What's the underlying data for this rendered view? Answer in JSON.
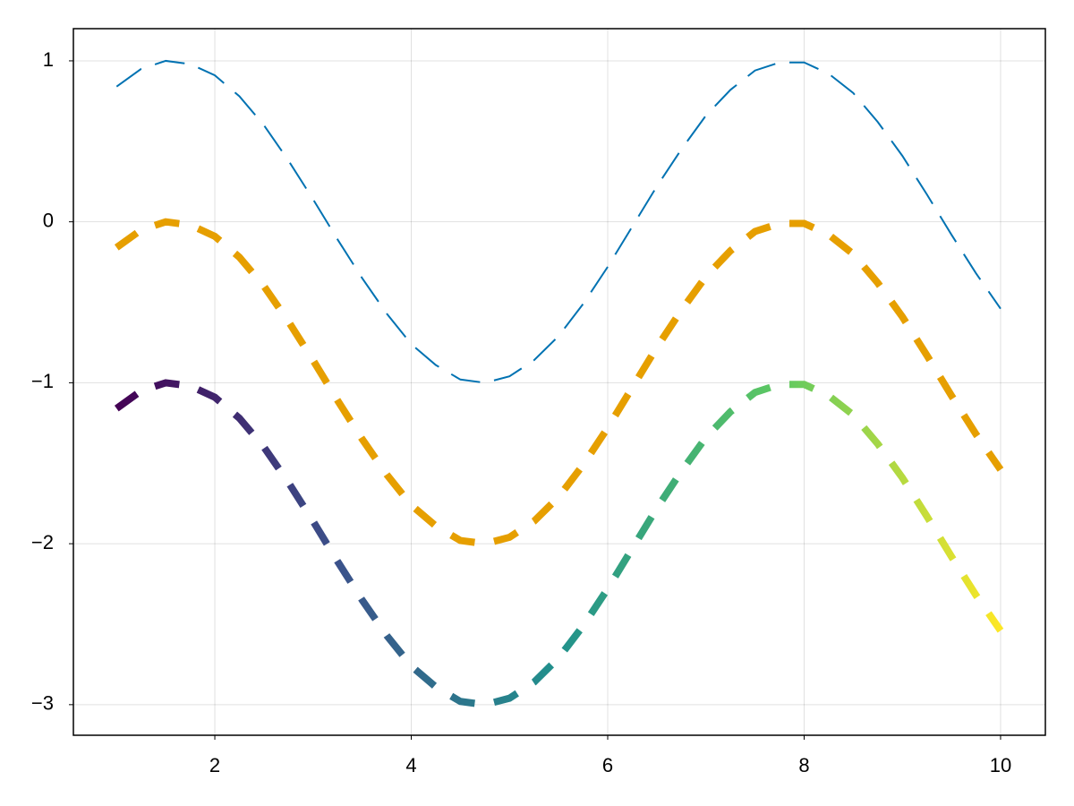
{
  "chart_data": {
    "type": "line",
    "x": [
      1,
      1.25,
      1.5,
      1.75,
      2,
      2.25,
      2.5,
      2.75,
      3,
      3.25,
      3.5,
      3.75,
      4,
      4.25,
      4.5,
      4.75,
      5,
      5.25,
      5.5,
      5.75,
      6,
      6.25,
      6.5,
      6.75,
      7,
      7.25,
      7.5,
      7.75,
      8,
      8.25,
      8.5,
      8.75,
      9,
      9.25,
      9.5,
      9.75,
      10
    ],
    "series": [
      {
        "color": "#0072b2",
        "linewidth": 2,
        "linestyle": "dash",
        "values": [
          0.84,
          0.95,
          1.0,
          0.98,
          0.91,
          0.78,
          0.6,
          0.38,
          0.14,
          -0.11,
          -0.35,
          -0.57,
          -0.76,
          -0.89,
          -0.98,
          -1.0,
          -0.96,
          -0.86,
          -0.71,
          -0.51,
          -0.28,
          -0.03,
          0.22,
          0.45,
          0.66,
          0.82,
          0.94,
          0.99,
          0.99,
          0.92,
          0.8,
          0.62,
          0.41,
          0.17,
          -0.08,
          -0.32,
          -0.54
        ]
      },
      {
        "color": "#e69f00",
        "linewidth": 8,
        "linestyle": "dash",
        "values": [
          -0.16,
          -0.05,
          0.0,
          -0.02,
          -0.09,
          -0.22,
          -0.4,
          -0.62,
          -0.86,
          -1.11,
          -1.35,
          -1.57,
          -1.76,
          -1.89,
          -1.98,
          -2.0,
          -1.96,
          -1.86,
          -1.71,
          -1.51,
          -1.28,
          -1.03,
          -0.78,
          -0.55,
          -0.34,
          -0.18,
          -0.06,
          -0.01,
          -0.01,
          -0.08,
          -0.2,
          -0.38,
          -0.59,
          -0.83,
          -1.08,
          -1.32,
          -1.54
        ]
      },
      {
        "colormap": [
          "#440154",
          "#3b528b",
          "#21918c",
          "#5ec962",
          "#fde725"
        ],
        "linewidth": 8,
        "linestyle": "dash",
        "values": [
          -1.16,
          -1.05,
          -1.0,
          -1.02,
          -1.09,
          -1.22,
          -1.4,
          -1.62,
          -1.86,
          -2.11,
          -2.35,
          -2.57,
          -2.76,
          -2.89,
          -2.98,
          -3.0,
          -2.96,
          -2.86,
          -2.71,
          -2.51,
          -2.28,
          -2.03,
          -1.78,
          -1.55,
          -1.34,
          -1.18,
          -1.06,
          -1.01,
          -1.01,
          -1.08,
          -1.2,
          -1.38,
          -1.59,
          -1.83,
          -2.08,
          -2.32,
          -2.54
        ]
      }
    ],
    "xlim": [
      0.56,
      10.456
    ],
    "ylim": [
      -3.19,
      1.2
    ],
    "xticks": [
      2,
      4,
      6,
      8,
      10
    ],
    "yticks": [
      1,
      0,
      {
        "value": -1,
        "label": "−1"
      },
      {
        "value": -2,
        "label": "−2"
      },
      {
        "value": -3,
        "label": "−3"
      }
    ],
    "grid": true
  }
}
